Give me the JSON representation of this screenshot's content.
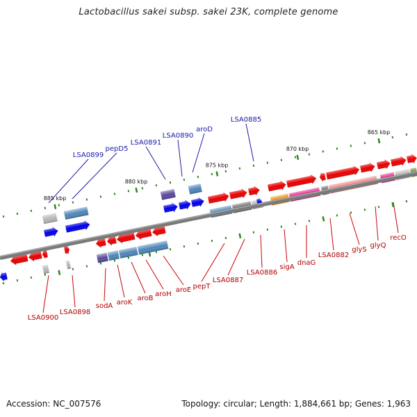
{
  "title": "Lactobacillus sakei subsp. sakei 23K, complete genome",
  "footer": {
    "accession": "Accession: NC_007576",
    "summary": "Topology: circular; Length: 1,884,661 bp; Genes: 1,963"
  },
  "scale_ticks": [
    "865 kbp",
    "870 kbp",
    "875 kbp",
    "880 kbp",
    "885 kbp"
  ],
  "colors": {
    "cds_red": "#e80000",
    "cds_blue": "#0000e8",
    "backbone": "#7a7a7a",
    "label_blue": "#1a1aa8",
    "label_red": "#b00000",
    "leader_blue": "#1a1aa8",
    "leader_red": "#cc0000",
    "tick_green": "#2a8a1a",
    "cog_grey": "#b8b8b8",
    "cog_steelblue": "#4f86b8",
    "cog_darkgrey": "#6a6a6a",
    "cog_orange": "#f08a00",
    "cog_magenta": "#e0208a",
    "cog_salmon": "#f08080",
    "cog_purple": "#5a4a9a",
    "cog_olive": "#6a8a2a"
  },
  "gene_labels_top": [
    "LSA0899",
    "pepD5",
    "LSA0891",
    "LSA0890",
    "aroD",
    "LSA0885"
  ],
  "gene_labels_bottom": [
    "LSA0900",
    "LSA0898",
    "sodA",
    "aroK",
    "aroB",
    "aroH",
    "aroE",
    "pepT",
    "LSA0887",
    "LSA0886",
    "sigA",
    "dnaG",
    "LSA0882",
    "glyS",
    "glyQ",
    "recO"
  ]
}
